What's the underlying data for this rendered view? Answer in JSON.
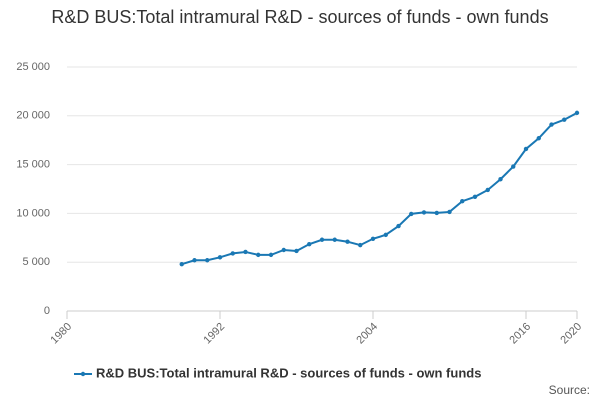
{
  "chart_data": {
    "type": "line",
    "title": "R&D BUS:Total intramural R&D - sources of funds - own funds",
    "source": "Source:",
    "x": [
      1989,
      1990,
      1991,
      1992,
      1993,
      1994,
      1995,
      1996,
      1997,
      1998,
      1999,
      2000,
      2001,
      2002,
      2003,
      2004,
      2005,
      2006,
      2007,
      2008,
      2009,
      2010,
      2011,
      2012,
      2013,
      2014,
      2015,
      2016,
      2017,
      2018,
      2019,
      2020
    ],
    "series": [
      {
        "name": "R&D BUS:Total intramural R&D - sources of funds - own funds",
        "color": "#1a78b4",
        "values": [
          4800,
          5200,
          5200,
          5500,
          5900,
          6050,
          5750,
          5750,
          6250,
          6150,
          6850,
          7300,
          7300,
          7100,
          6750,
          7400,
          7800,
          8700,
          9950,
          10100,
          10050,
          10150,
          11250,
          11700,
          12400,
          13500,
          14800,
          16600,
          17700,
          19100,
          19600,
          20300
        ]
      }
    ],
    "xlim": [
      1980,
      2020
    ],
    "xticks": [
      1980,
      1992,
      2004,
      2016,
      2020
    ],
    "ylim": [
      0,
      25000
    ],
    "yticks": [
      0,
      {
        "value": 5000,
        "label": "5 000"
      },
      {
        "value": 10000,
        "label": "10 000"
      },
      {
        "value": 15000,
        "label": "15 000"
      },
      {
        "value": 20000,
        "label": "20 000"
      },
      {
        "value": 25000,
        "label": "25 000"
      }
    ],
    "grid": true,
    "legend": "bottom"
  }
}
